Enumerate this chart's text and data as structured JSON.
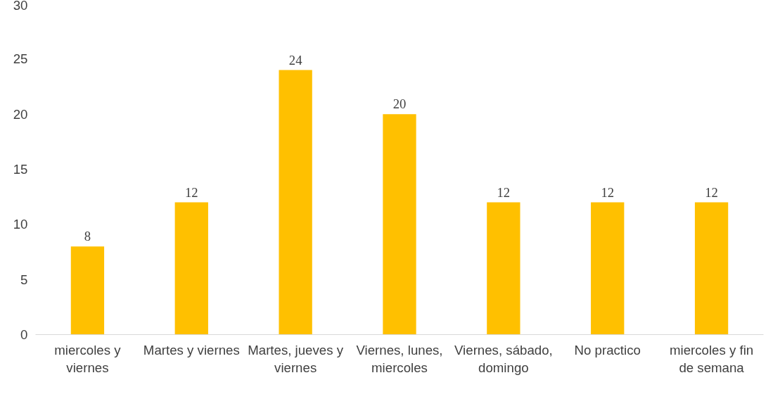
{
  "chart_data": {
    "type": "bar",
    "categories": [
      "miercoles y viernes",
      "Martes y viernes",
      "Martes, jueves y viernes",
      "Viernes, lunes, miercoles",
      "Viernes, sábado, domingo",
      "No practico",
      "miercoles y fin de semana"
    ],
    "values": [
      8,
      12,
      24,
      20,
      12,
      12,
      12
    ],
    "color": "#ffc000",
    "ylim": [
      0,
      30
    ],
    "yticks": [
      0,
      5,
      10,
      15,
      20,
      25,
      30
    ],
    "grid": false,
    "data_labels": true
  }
}
